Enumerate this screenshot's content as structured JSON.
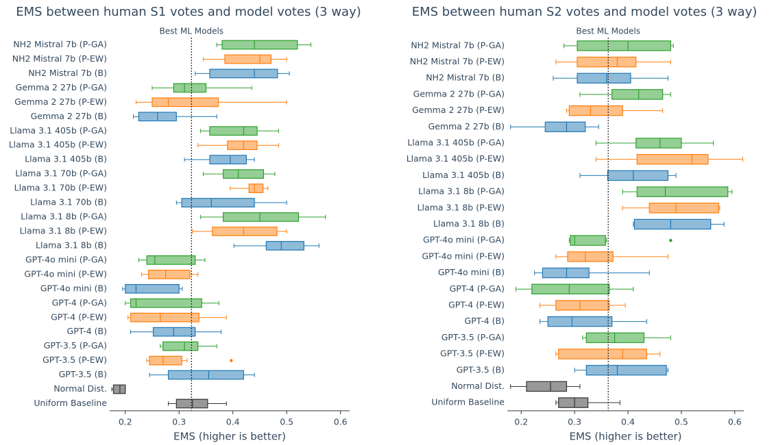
{
  "chart_data": [
    {
      "type": "box",
      "title": "EMS between human S1 votes and model votes (3 way)",
      "xlabel": "EMS (higher is better)",
      "xlim": [
        0.171,
        0.617
      ],
      "xticks": [
        0.2,
        0.3,
        0.4,
        0.5,
        0.6
      ],
      "reference_line": {
        "value": 0.323,
        "label": "Best ML Models"
      },
      "categories": [
        "NH2 Mistral 7b (P-GA)",
        "NH2 Mistral 7b (P-EW)",
        "NH2 Mistral 7b (B)",
        "Gemma 2 27b (P-GA)",
        "Gemma 2 27b (P-EW)",
        "Gemma 2 27b (B)",
        "Llama 3.1 405b (P-GA)",
        "Llama 3.1 405b (P-EW)",
        "Llama 3.1 405b (B)",
        "Llama 3.1 70b (P-GA)",
        "Llama 3.1 70b (P-EW)",
        "Llama 3.1 70b (B)",
        "Llama 3.1 8b (P-GA)",
        "Llama 3.1 8b (P-EW)",
        "Llama 3.1 8b (B)",
        "GPT-4o mini (P-GA)",
        "GPT-4o mini (P-EW)",
        "GPT-4o mini (B)",
        "GPT-4 (P-GA)",
        "GPT-4 (P-EW)",
        "GPT-4 (B)",
        "GPT-3.5 (P-GA)",
        "GPT-3.5 (P-EW)",
        "GPT-3.5 (B)",
        "Normal Dist.",
        "Uniform Baseline"
      ],
      "boxes": [
        {
          "low": 0.37,
          "q1": 0.38,
          "median": 0.44,
          "q3": 0.52,
          "high": 0.545,
          "color": "#2ca02c"
        },
        {
          "low": 0.345,
          "q1": 0.385,
          "median": 0.45,
          "q3": 0.471,
          "high": 0.5,
          "color": "#ff7f0e"
        },
        {
          "low": 0.33,
          "q1": 0.357,
          "median": 0.44,
          "q3": 0.483,
          "high": 0.505,
          "color": "#1f77b4"
        },
        {
          "low": 0.25,
          "q1": 0.29,
          "median": 0.31,
          "q3": 0.35,
          "high": 0.435,
          "color": "#2ca02c"
        },
        {
          "low": 0.22,
          "q1": 0.25,
          "median": 0.28,
          "q3": 0.373,
          "high": 0.5,
          "color": "#ff7f0e"
        },
        {
          "low": 0.215,
          "q1": 0.225,
          "median": 0.26,
          "q3": 0.295,
          "high": 0.37,
          "color": "#1f77b4"
        },
        {
          "low": 0.34,
          "q1": 0.357,
          "median": 0.42,
          "q3": 0.445,
          "high": 0.485,
          "color": "#2ca02c"
        },
        {
          "low": 0.335,
          "q1": 0.39,
          "median": 0.42,
          "q3": 0.445,
          "high": 0.485,
          "color": "#ff7f0e"
        },
        {
          "low": 0.31,
          "q1": 0.357,
          "median": 0.395,
          "q3": 0.425,
          "high": 0.44,
          "color": "#1f77b4"
        },
        {
          "low": 0.345,
          "q1": 0.382,
          "median": 0.41,
          "q3": 0.457,
          "high": 0.478,
          "color": "#2ca02c"
        },
        {
          "low": 0.395,
          "q1": 0.43,
          "median": 0.44,
          "q3": 0.456,
          "high": 0.465,
          "color": "#ff7f0e"
        },
        {
          "low": 0.295,
          "q1": 0.305,
          "median": 0.36,
          "q3": 0.44,
          "high": 0.5,
          "color": "#1f77b4"
        },
        {
          "low": 0.34,
          "q1": 0.382,
          "median": 0.45,
          "q3": 0.522,
          "high": 0.572,
          "color": "#2ca02c"
        },
        {
          "low": 0.325,
          "q1": 0.362,
          "median": 0.42,
          "q3": 0.482,
          "high": 0.5,
          "color": "#ff7f0e"
        },
        {
          "low": 0.402,
          "q1": 0.462,
          "median": 0.49,
          "q3": 0.532,
          "high": 0.56,
          "color": "#1f77b4"
        },
        {
          "low": 0.225,
          "q1": 0.24,
          "median": 0.255,
          "q3": 0.33,
          "high": 0.348,
          "color": "#2ca02c"
        },
        {
          "low": 0.23,
          "q1": 0.243,
          "median": 0.275,
          "q3": 0.32,
          "high": 0.335,
          "color": "#ff7f0e"
        },
        {
          "low": 0.195,
          "q1": 0.2,
          "median": 0.22,
          "q3": 0.3,
          "high": 0.306,
          "color": "#1f77b4"
        },
        {
          "low": 0.2,
          "q1": 0.21,
          "median": 0.22,
          "q3": 0.342,
          "high": 0.374,
          "color": "#2ca02c"
        },
        {
          "low": 0.205,
          "q1": 0.21,
          "median": 0.265,
          "q3": 0.337,
          "high": 0.388,
          "color": "#ff7f0e"
        },
        {
          "low": 0.21,
          "q1": 0.252,
          "median": 0.29,
          "q3": 0.33,
          "high": 0.378,
          "color": "#1f77b4"
        },
        {
          "low": 0.265,
          "q1": 0.27,
          "median": 0.31,
          "q3": 0.335,
          "high": 0.37,
          "color": "#2ca02c"
        },
        {
          "low": 0.24,
          "q1": 0.245,
          "median": 0.27,
          "q3": 0.305,
          "high": 0.315,
          "color": "#ff7f0e",
          "outliers": [
            0.397
          ]
        },
        {
          "low": 0.245,
          "q1": 0.28,
          "median": 0.355,
          "q3": 0.42,
          "high": 0.44,
          "color": "#1f77b4"
        },
        {
          "low": 0.175,
          "q1": 0.178,
          "median": 0.19,
          "q3": 0.2,
          "high": 0.2,
          "color": "#333333"
        },
        {
          "low": 0.28,
          "q1": 0.295,
          "median": 0.325,
          "q3": 0.353,
          "high": 0.388,
          "color": "#333333"
        }
      ]
    },
    {
      "type": "box",
      "title": "EMS between human S2 votes and model votes (3 way)",
      "xlabel": "EMS (higher is better)",
      "xlim": [
        0.174,
        0.617
      ],
      "xticks": [
        0.2,
        0.3,
        0.4,
        0.5,
        0.6
      ],
      "reference_line": {
        "value": 0.363,
        "label": "Best ML Models"
      },
      "categories": [
        "NH2 Mistral 7b (P-GA)",
        "NH2 Mistral 7b (P-EW)",
        "NH2 Mistral 7b (B)",
        "Gemma 2 27b (P-GA)",
        "Gemma 2 27b (P-EW)",
        "Gemma 2 27b (B)",
        "Llama 3.1 405b (P-GA)",
        "Llama 3.1 405b (P-EW)",
        "Llama 3.1 405b (B)",
        "Llama 3.1 8b (P-GA)",
        "Llama 3.1 8b (P-EW)",
        "Llama 3.1 8b (B)",
        "GPT-4o mini (P-GA)",
        "GPT-4o mini (P-EW)",
        "GPT-4o mini (B)",
        "GPT-4 (P-GA)",
        "GPT-4 (P-EW)",
        "GPT-4 (B)",
        "GPT-3.5 (P-GA)",
        "GPT-3.5 (P-EW)",
        "GPT-3.5 (B)",
        "Normal Dist.",
        "Uniform Baseline"
      ],
      "boxes": [
        {
          "low": 0.28,
          "q1": 0.305,
          "median": 0.4,
          "q3": 0.48,
          "high": 0.485,
          "color": "#2ca02c"
        },
        {
          "low": 0.265,
          "q1": 0.305,
          "median": 0.38,
          "q3": 0.415,
          "high": 0.48,
          "color": "#ff7f0e"
        },
        {
          "low": 0.26,
          "q1": 0.305,
          "median": 0.36,
          "q3": 0.405,
          "high": 0.475,
          "color": "#1f77b4"
        },
        {
          "low": 0.31,
          "q1": 0.37,
          "median": 0.42,
          "q3": 0.465,
          "high": 0.48,
          "color": "#2ca02c"
        },
        {
          "low": 0.285,
          "q1": 0.29,
          "median": 0.33,
          "q3": 0.39,
          "high": 0.465,
          "color": "#ff7f0e"
        },
        {
          "low": 0.18,
          "q1": 0.245,
          "median": 0.285,
          "q3": 0.32,
          "high": 0.345,
          "color": "#1f77b4"
        },
        {
          "low": 0.34,
          "q1": 0.415,
          "median": 0.46,
          "q3": 0.5,
          "high": 0.56,
          "color": "#2ca02c"
        },
        {
          "low": 0.34,
          "q1": 0.417,
          "median": 0.52,
          "q3": 0.55,
          "high": 0.615,
          "color": "#ff7f0e"
        },
        {
          "low": 0.31,
          "q1": 0.362,
          "median": 0.41,
          "q3": 0.475,
          "high": 0.49,
          "color": "#1f77b4"
        },
        {
          "low": 0.39,
          "q1": 0.417,
          "median": 0.47,
          "q3": 0.587,
          "high": 0.595,
          "color": "#2ca02c"
        },
        {
          "low": 0.39,
          "q1": 0.44,
          "median": 0.49,
          "q3": 0.57,
          "high": 0.572,
          "color": "#ff7f0e"
        },
        {
          "low": 0.41,
          "q1": 0.412,
          "median": 0.48,
          "q3": 0.555,
          "high": 0.58,
          "color": "#1f77b4"
        },
        {
          "low": 0.29,
          "q1": 0.292,
          "median": 0.3,
          "q3": 0.358,
          "high": 0.36,
          "color": "#2ca02c",
          "outliers": [
            0.48
          ]
        },
        {
          "low": 0.265,
          "q1": 0.287,
          "median": 0.32,
          "q3": 0.372,
          "high": 0.475,
          "color": "#ff7f0e"
        },
        {
          "low": 0.225,
          "q1": 0.24,
          "median": 0.285,
          "q3": 0.327,
          "high": 0.44,
          "color": "#1f77b4"
        },
        {
          "low": 0.19,
          "q1": 0.22,
          "median": 0.29,
          "q3": 0.365,
          "high": 0.41,
          "color": "#2ca02c"
        },
        {
          "low": 0.235,
          "q1": 0.265,
          "median": 0.31,
          "q3": 0.365,
          "high": 0.395,
          "color": "#ff7f0e"
        },
        {
          "low": 0.235,
          "q1": 0.25,
          "median": 0.295,
          "q3": 0.37,
          "high": 0.435,
          "color": "#1f77b4"
        },
        {
          "low": 0.315,
          "q1": 0.322,
          "median": 0.375,
          "q3": 0.43,
          "high": 0.48,
          "color": "#2ca02c"
        },
        {
          "low": 0.265,
          "q1": 0.27,
          "median": 0.39,
          "q3": 0.435,
          "high": 0.46,
          "color": "#ff7f0e"
        },
        {
          "low": 0.3,
          "q1": 0.322,
          "median": 0.38,
          "q3": 0.472,
          "high": 0.475,
          "color": "#1f77b4"
        },
        {
          "low": 0.18,
          "q1": 0.21,
          "median": 0.255,
          "q3": 0.285,
          "high": 0.31,
          "color": "#333333"
        },
        {
          "low": 0.265,
          "q1": 0.27,
          "median": 0.3,
          "q3": 0.325,
          "high": 0.385,
          "color": "#333333"
        }
      ]
    }
  ]
}
